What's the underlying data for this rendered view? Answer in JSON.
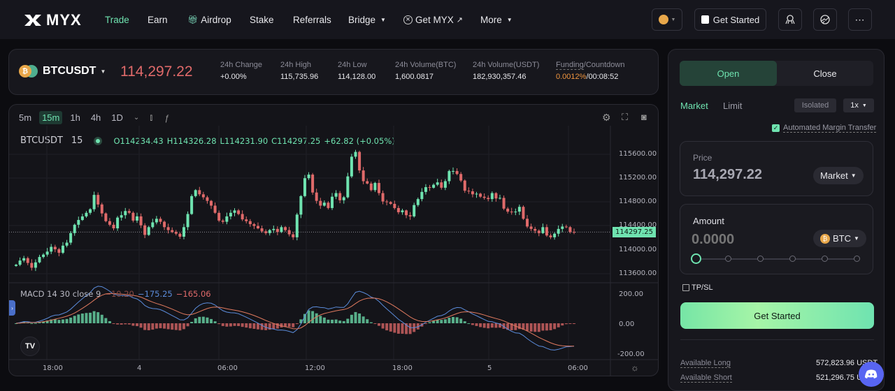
{
  "nav": {
    "logo": "MYX",
    "items": [
      {
        "label": "Trade",
        "active": true
      },
      {
        "label": "Earn"
      },
      {
        "label": "Airdrop",
        "icon": "gift-icon"
      },
      {
        "label": "Stake"
      },
      {
        "label": "Referrals"
      },
      {
        "label": "Bridge",
        "dropdown": true
      },
      {
        "label": "Get MYX",
        "icon": "x-circle-icon",
        "external": true
      },
      {
        "label": "More",
        "dropdown": true
      }
    ],
    "get_started": "Get Started",
    "more_icon": "⋯"
  },
  "ticker": {
    "symbol": "BTCUSDT",
    "last_price": "114,297.22",
    "stats": [
      {
        "label": "24h Change",
        "value": "+0.00%"
      },
      {
        "label": "24h High",
        "value": "115,735.96"
      },
      {
        "label": "24h Low",
        "value": "114,128.00"
      },
      {
        "label": "24h Volume(BTC)",
        "value": "1,600.0817"
      },
      {
        "label": "24h Volume(USDT)",
        "value": "182,930,357.46"
      }
    ],
    "funding": {
      "label_a": "Funding",
      "label_b": "/Countdown",
      "rate": "0.0012%",
      "countdown": "/00:08:52"
    }
  },
  "chart": {
    "timeframes": [
      "5m",
      "15m",
      "1h",
      "4h",
      "1D"
    ],
    "active_timeframe": "15m",
    "legend": {
      "symbol": "BTCUSDT",
      "interval": "15",
      "open": "O114234.43",
      "high": "H114326.28",
      "low": "L114231.90",
      "close": "C114297.25",
      "change": "+62.82 (+0.05%)"
    },
    "price_label": "114297.25",
    "macd_legend": {
      "name": "MACD 14 30 close 9",
      "hist": "−10.20",
      "macd": "−175.25",
      "signal": "−165.06"
    }
  },
  "chart_data": {
    "type": "candlestick",
    "title": "BTCUSDT 15",
    "y_ticks": [
      "115600.00",
      "115200.00",
      "114800.00",
      "114400.00",
      "114000.00",
      "113600.00"
    ],
    "x_ticks": [
      "18:00",
      "4",
      "06:00",
      "12:00",
      "18:00",
      "5",
      "06:00"
    ],
    "last_price": 114297.25,
    "ohlc_last": {
      "open": 114234.43,
      "high": 114326.28,
      "low": 114231.9,
      "close": 114297.25
    },
    "closes": [
      113750,
      113820,
      113860,
      113780,
      113700,
      113790,
      113880,
      113920,
      113970,
      114050,
      114010,
      113950,
      114070,
      114120,
      114280,
      114420,
      114500,
      114560,
      114620,
      114680,
      114920,
      114760,
      114610,
      114480,
      114420,
      114360,
      114540,
      114580,
      114650,
      114620,
      114490,
      114560,
      114410,
      114250,
      114380,
      114460,
      114520,
      114470,
      114380,
      114330,
      114300,
      114270,
      114220,
      114380,
      114600,
      114900,
      115000,
      114930,
      114880,
      114820,
      114740,
      114620,
      114490,
      114470,
      114560,
      114620,
      114660,
      114600,
      114510,
      114480,
      114430,
      114400,
      114360,
      114310,
      114280,
      114330,
      114350,
      114300,
      114380,
      114330,
      114260,
      114210,
      114590,
      114900,
      115200,
      115260,
      114960,
      114820,
      114740,
      114790,
      114700,
      114890,
      114950,
      114830,
      114880,
      115230,
      115560,
      115640,
      115330,
      115150,
      115110,
      115000,
      115120,
      114950,
      114810,
      114800,
      114770,
      114700,
      114630,
      114660,
      114580,
      114560,
      114750,
      114850,
      114970,
      115050,
      115040,
      115090,
      115130,
      115040,
      115150,
      115320,
      115320,
      115270,
      115160,
      114990,
      114980,
      114930,
      114940,
      114890,
      114870,
      114850,
      114950,
      114860,
      114870,
      114690,
      114640,
      114630,
      114640,
      114720,
      114520,
      114390,
      114350,
      114320,
      114280,
      114380,
      114240,
      114210,
      114270,
      114350,
      114390,
      114380,
      114300,
      114297
    ],
    "macd_y_ticks": [
      "200.00",
      "0.00",
      "-200.00"
    ],
    "macd_last": {
      "hist": -10.2,
      "macd": -175.25,
      "signal": -165.06
    }
  },
  "order": {
    "tabs": [
      "Open",
      "Close"
    ],
    "types": [
      "Market",
      "Limit"
    ],
    "margin_mode": "Isolated",
    "leverage": "1x",
    "auto_margin_label": "Automated Margin Transfer",
    "price_label": "Price",
    "price_value": "114,297.22",
    "price_type": "Market",
    "amount_label": "Amount",
    "amount_placeholder": "0.0000",
    "amount_unit": "BTC",
    "tpsl_label": "TP/SL",
    "submit": "Get Started",
    "available": [
      {
        "label": "Available Long",
        "value": "572,823.96 USDT"
      },
      {
        "label": "Available Short",
        "value": "521,296.75 USDT"
      }
    ]
  }
}
